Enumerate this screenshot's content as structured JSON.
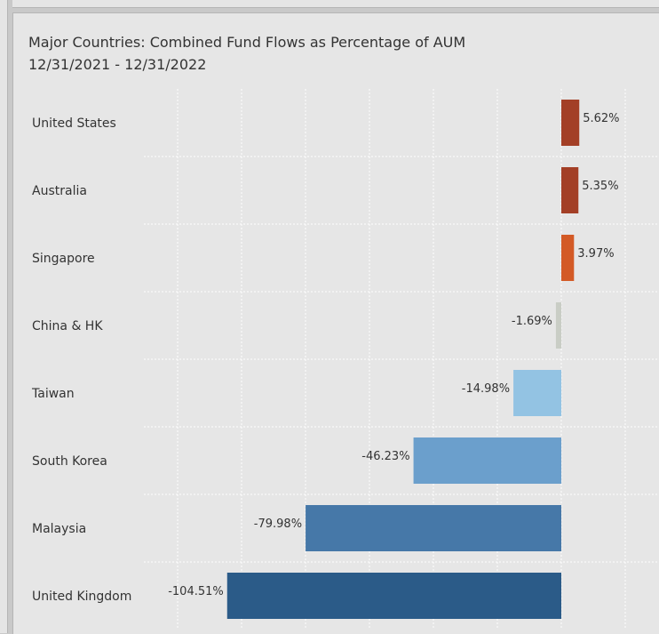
{
  "chart_data": {
    "type": "bar",
    "orientation": "horizontal",
    "title": "Major Countries:  Combined Fund Flows as Percentage of AUM",
    "subtitle": "12/31/2021 - 12/31/2022",
    "categories": [
      "United States",
      "Australia",
      "Singapore",
      "China & HK",
      "Taiwan",
      "South Korea",
      "Malaysia",
      "United Kingdom"
    ],
    "values": [
      5.62,
      5.35,
      3.97,
      -1.69,
      -14.98,
      -46.23,
      -79.98,
      -104.51
    ],
    "value_labels": [
      "5.62%",
      "5.35%",
      "3.97%",
      "-1.69%",
      "-14.98%",
      "-46.23%",
      "-79.98%",
      "-104.51%"
    ],
    "colors": [
      "#a33f26",
      "#a33f26",
      "#d35a26",
      "#c9cdc5",
      "#93c3e3",
      "#6b9fcc",
      "#4678a8",
      "#2b5b88"
    ],
    "xlim": [
      -120,
      20
    ],
    "grid": true
  }
}
